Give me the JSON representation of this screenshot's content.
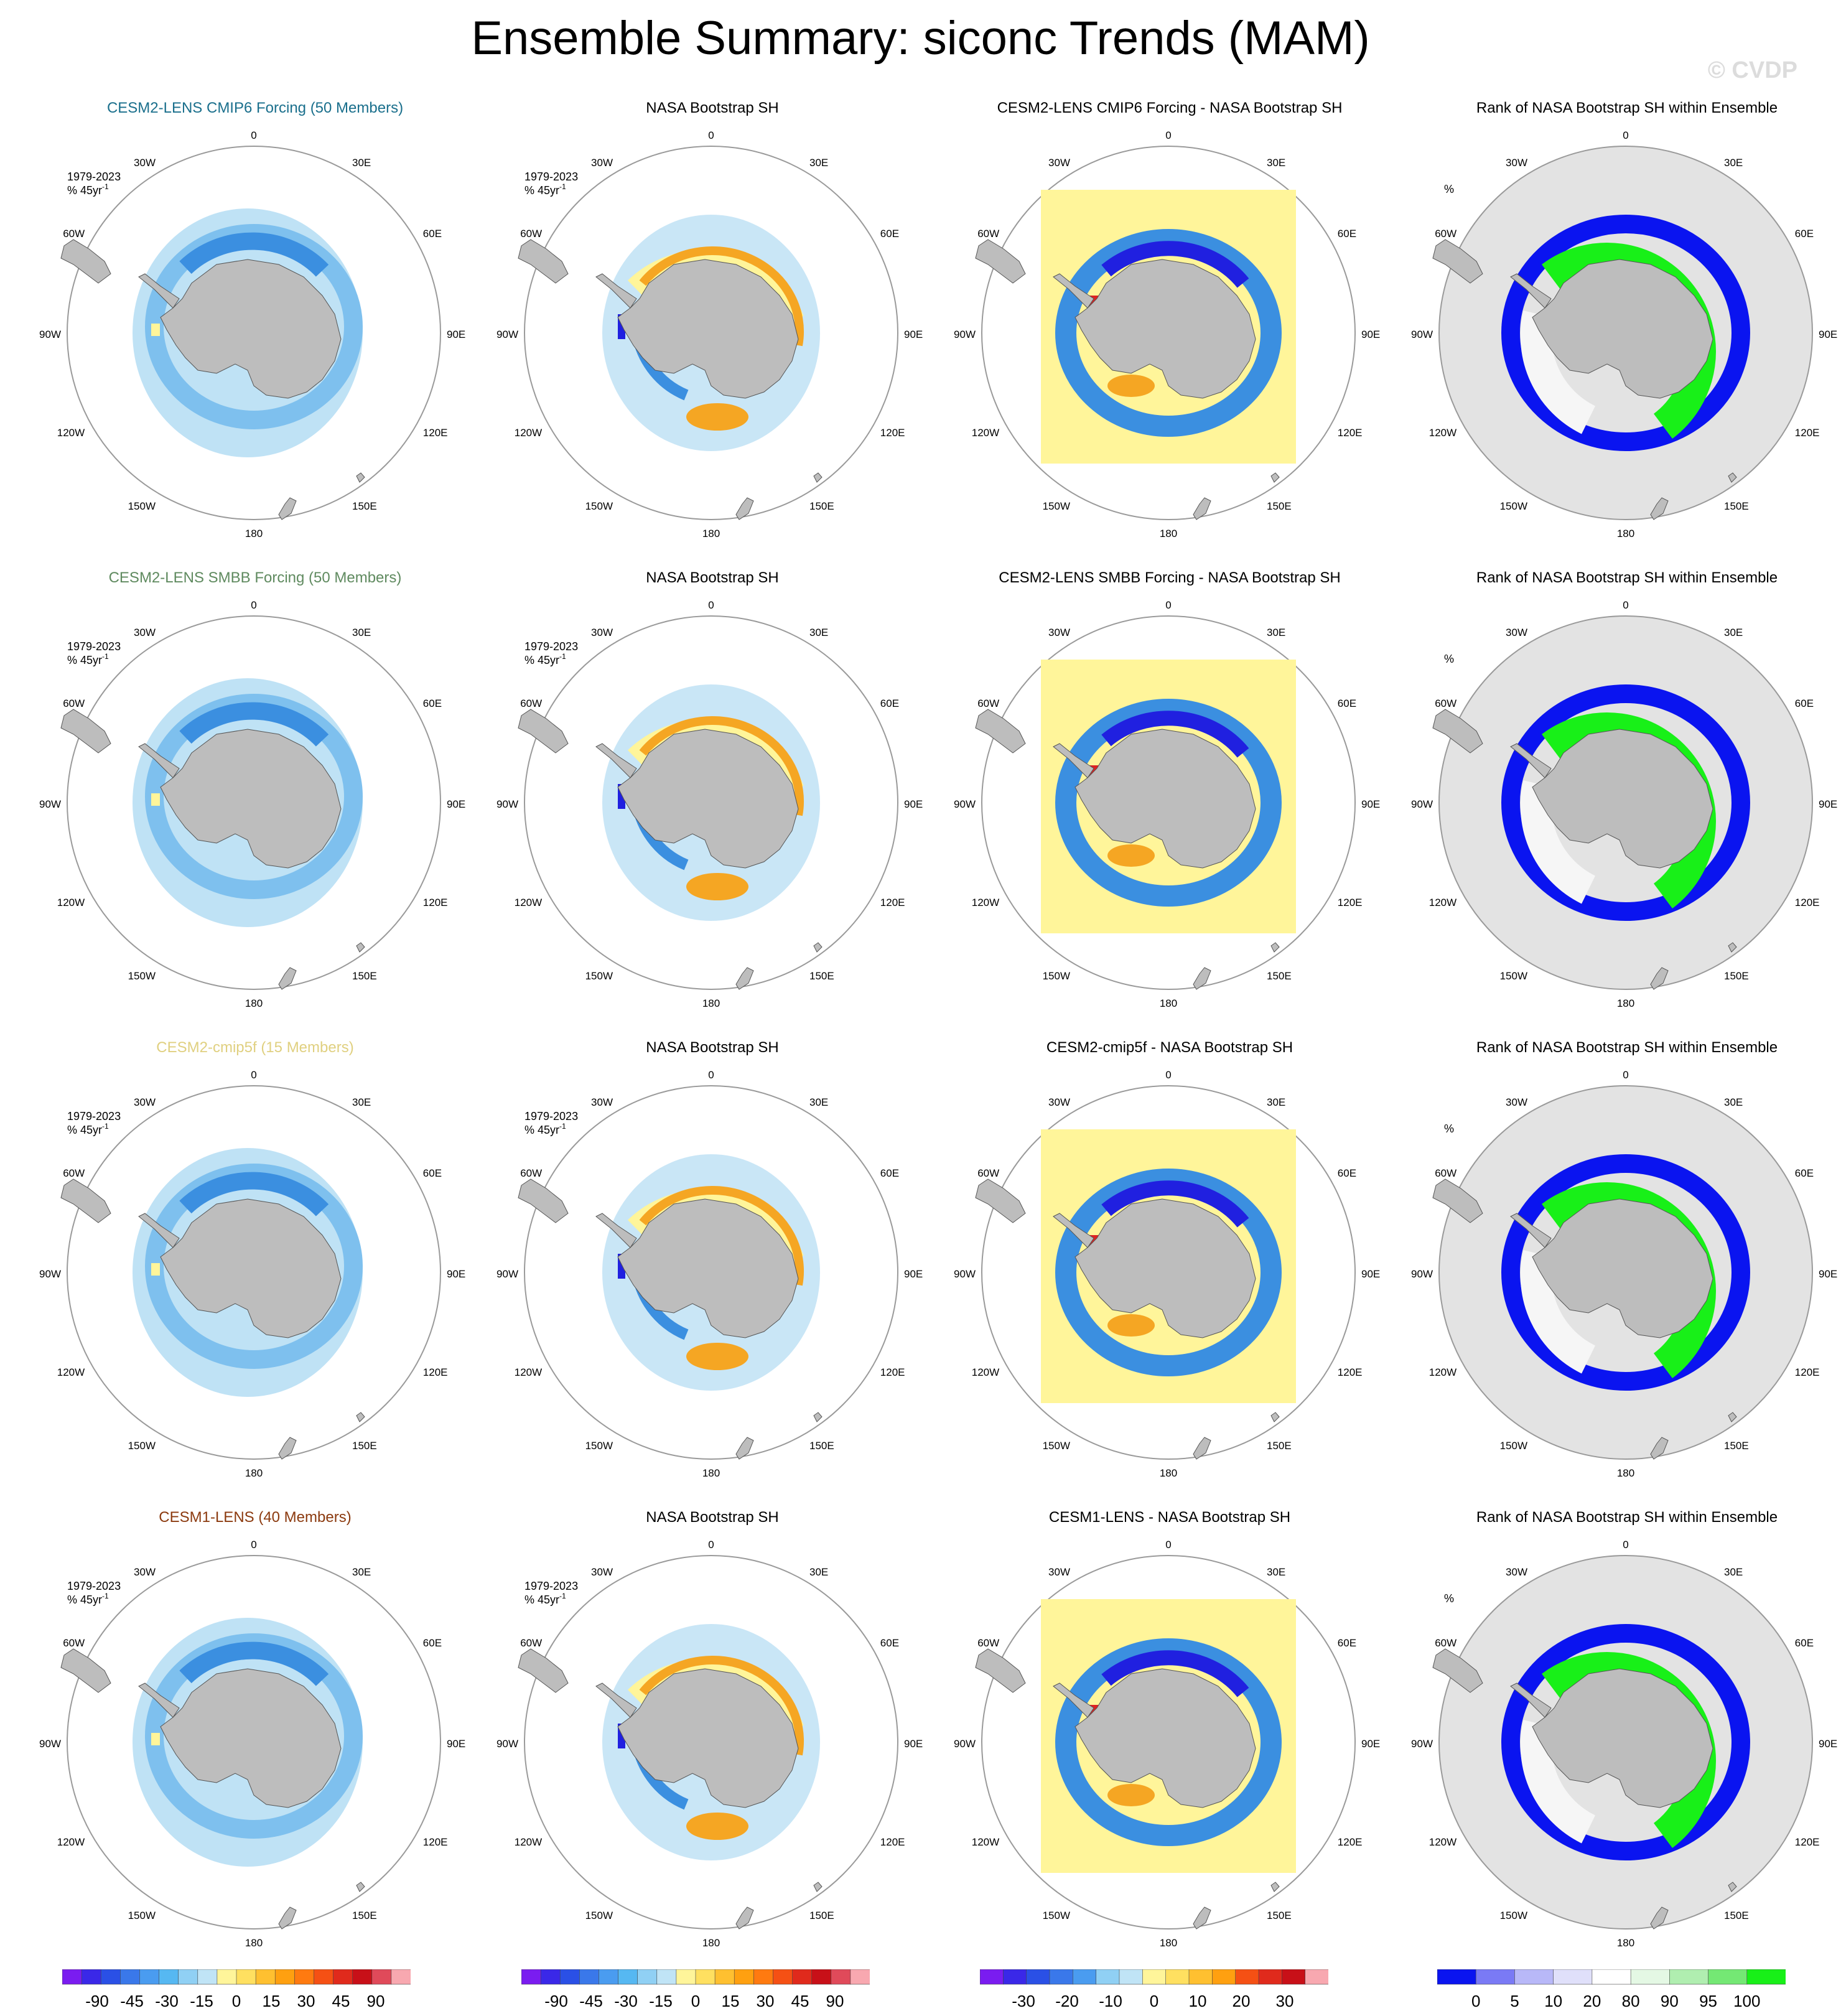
{
  "title": "Ensemble Summary: siconc Trends (MAM)",
  "watermark": "© CVDP",
  "colors": {
    "land": "#bdbdbd",
    "ocean": "#ffffff",
    "ring": "#9a9a9a",
    "rank_background": "#e3e3e3",
    "light_blue": "#bfe2f5",
    "mid_blue": "#7ec0ee",
    "blue": "#3b8fe0",
    "dark_blue": "#2020e0",
    "yellow": "#fff59a",
    "orange": "#f5a623",
    "red": "#dd2222",
    "rank_blue": "#0a14f0",
    "rank_green": "#18f018",
    "rank_white": "#f6f6f6",
    "rank_pale_green": "#dcf7dc"
  },
  "rows": [
    {
      "model_title": "CESM2-LENS CMIP6 Forcing (50 Members)",
      "model_title_color": "#1a6f8c",
      "obs_title": "NASA Bootstrap SH",
      "diff_title": "CESM2-LENS CMIP6 Forcing - NASA Bootstrap SH",
      "rank_title": "Rank of NASA Bootstrap SH within Ensemble"
    },
    {
      "model_title": "CESM2-LENS SMBB Forcing (50 Members)",
      "model_title_color": "#5f8a5f",
      "obs_title": "NASA Bootstrap SH",
      "diff_title": "CESM2-LENS SMBB Forcing - NASA Bootstrap SH",
      "rank_title": "Rank of NASA Bootstrap SH within Ensemble"
    },
    {
      "model_title": "CESM2-cmip5f (15 Members)",
      "model_title_color": "#e0d080",
      "obs_title": "NASA Bootstrap SH",
      "diff_title": "CESM2-cmip5f - NASA Bootstrap SH",
      "rank_title": "Rank of NASA Bootstrap SH within Ensemble"
    },
    {
      "model_title": "CESM1-LENS (40 Members)",
      "model_title_color": "#8b3a0f",
      "obs_title": "NASA Bootstrap SH",
      "diff_title": "CESM1-LENS - NASA Bootstrap SH",
      "rank_title": "Rank of NASA Bootstrap SH within Ensemble"
    }
  ],
  "period_label": "1979-2023",
  "units_label": "% 45yr",
  "units_superscript": "-1",
  "rank_units_label": "%",
  "longitude_labels": {
    "top": "0",
    "bottom": "180",
    "left": "90W",
    "right": "90E",
    "upper_left_1": "30W",
    "upper_left_2": "60W",
    "upper_right_1": "30E",
    "upper_right_2": "60E",
    "lower_left_1": "120W",
    "lower_left_2": "150W",
    "lower_right_1": "120E",
    "lower_right_2": "150E"
  },
  "chart_data": {
    "type": "polar map panels",
    "colorbars": [
      {
        "name": "trend",
        "labels": [
          "-90",
          "-45",
          "-30",
          "-15",
          "0",
          "15",
          "30",
          "45",
          "90"
        ],
        "colors": [
          "#7a1cf0",
          "#3a28e8",
          "#2a50e6",
          "#3a78ea",
          "#4a9cf0",
          "#56b8f2",
          "#90d0f4",
          "#c0e4f6",
          "#fff59a",
          "#ffe060",
          "#ffc030",
          "#ffa010",
          "#ff7a10",
          "#f55014",
          "#e02a1c",
          "#c81018",
          "#e04a5a",
          "#f8a8b0"
        ]
      },
      {
        "name": "trend_obs",
        "labels": [
          "-90",
          "-45",
          "-30",
          "-15",
          "0",
          "15",
          "30",
          "45",
          "90"
        ],
        "colors": [
          "#7a1cf0",
          "#3a28e8",
          "#2a50e6",
          "#3a78ea",
          "#4a9cf0",
          "#56b8f2",
          "#90d0f4",
          "#c0e4f6",
          "#fff59a",
          "#ffe060",
          "#ffc030",
          "#ffa010",
          "#ff7a10",
          "#f55014",
          "#e02a1c",
          "#c81018",
          "#e04a5a",
          "#f8a8b0"
        ]
      },
      {
        "name": "difference",
        "labels": [
          "-30",
          "-20",
          "-10",
          "0",
          "10",
          "20",
          "30"
        ],
        "colors": [
          "#7a1cf0",
          "#3a28e8",
          "#2a50e6",
          "#3a78ea",
          "#4a9cf0",
          "#90d0f4",
          "#c0e4f6",
          "#fff59a",
          "#ffe060",
          "#ffc030",
          "#ffa010",
          "#f55014",
          "#e02a1c",
          "#c81018",
          "#f8a8b0"
        ]
      },
      {
        "name": "rank",
        "labels": [
          "0",
          "5",
          "10",
          "20",
          "80",
          "90",
          "95",
          "100"
        ],
        "colors": [
          "#0a14f0",
          "#7a7af5",
          "#b8b8f8",
          "#e0e0fa",
          "#ffffff",
          "#e4f8e4",
          "#b0eeb0",
          "#74e874",
          "#18f018"
        ]
      }
    ]
  }
}
